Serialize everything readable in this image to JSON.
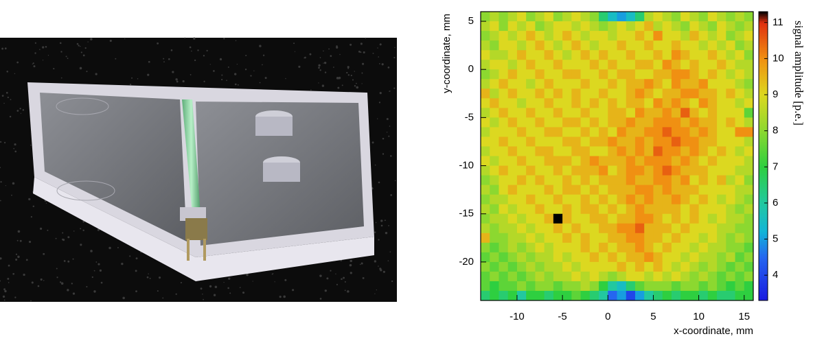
{
  "chart_data": {
    "type": "heatmap",
    "x_label": "x-coordinate, mm",
    "y_label": "y-coordinate, mm",
    "colorbar_label": "signal amplitude [p.e.]",
    "xlim": [
      -14,
      16
    ],
    "ylim": [
      -24,
      6
    ],
    "xticks": [
      -10,
      -5,
      0,
      5,
      10,
      15
    ],
    "yticks": [
      5,
      0,
      -5,
      -10,
      -15,
      -20
    ],
    "zlim": [
      3.3,
      11.3
    ],
    "zticks": [
      4,
      5,
      6,
      7,
      8,
      9,
      10,
      11
    ],
    "colorscale": [
      [
        3.3,
        "#1a1ae0"
      ],
      [
        4.5,
        "#2566f0"
      ],
      [
        5.2,
        "#12b4d8"
      ],
      [
        6,
        "#22c8a0"
      ],
      [
        7,
        "#2ecf40"
      ],
      [
        8,
        "#8cd830"
      ],
      [
        9,
        "#dcd820"
      ],
      [
        10,
        "#f09012"
      ],
      [
        11,
        "#e03010"
      ],
      [
        11.3,
        "#000000"
      ]
    ],
    "x": [
      -13.5,
      -12.5,
      -11.5,
      -10.5,
      -9.5,
      -8.5,
      -7.5,
      -6.5,
      -5.5,
      -4.5,
      -3.5,
      -2.5,
      -1.5,
      -0.5,
      0.5,
      1.5,
      2.5,
      3.5,
      4.5,
      5.5,
      6.5,
      7.5,
      8.5,
      9.5,
      10.5,
      11.5,
      12.5,
      13.5,
      14.5,
      15.5
    ],
    "y": [
      5.5,
      4.5,
      3.5,
      2.5,
      1.5,
      0.5,
      -0.5,
      -1.5,
      -2.5,
      -3.5,
      -4.5,
      -5.5,
      -6.5,
      -7.5,
      -8.5,
      -9.5,
      -10.5,
      -11.5,
      -12.5,
      -13.5,
      -14.5,
      -15.5,
      -16.5,
      -17.5,
      -18.5,
      -19.5,
      -20.5,
      -21.5,
      -22.5,
      -23.5
    ],
    "z": [
      [
        8,
        8.5,
        8,
        8.5,
        9,
        8,
        8.5,
        9,
        8,
        8.5,
        9,
        8.5,
        8,
        6.5,
        5.5,
        5,
        5.5,
        6.5,
        8.5,
        9,
        8.5,
        8,
        9,
        8.5,
        8,
        9,
        8.5,
        8,
        8.5,
        8
      ],
      [
        8.5,
        9,
        8,
        9,
        8.5,
        9,
        8,
        8.5,
        9,
        9,
        8.5,
        9,
        8.5,
        8,
        8.5,
        9,
        8.5,
        9,
        9.5,
        8.5,
        9,
        8.5,
        8,
        9,
        8.5,
        8,
        9,
        8.5,
        8,
        8.5
      ],
      [
        8,
        8.5,
        9,
        8.5,
        9,
        9.5,
        9,
        8.5,
        9,
        9.5,
        9,
        8.5,
        9,
        9,
        8.5,
        9,
        9,
        9.5,
        9,
        10,
        9,
        9,
        8.5,
        9.5,
        9,
        8.5,
        9,
        8,
        8.5,
        9
      ],
      [
        8.5,
        8,
        9,
        9,
        8.5,
        9,
        9.5,
        9,
        8.5,
        9,
        9.5,
        9,
        8.5,
        9,
        9,
        9.5,
        9,
        9,
        9.5,
        9,
        9,
        9.5,
        9,
        9,
        8.5,
        9,
        8.5,
        9,
        8,
        8.5
      ],
      [
        9,
        8.5,
        8.5,
        9,
        9.5,
        9,
        9,
        9.5,
        9,
        8.5,
        9,
        9.5,
        9,
        9.5,
        9,
        9,
        9.5,
        9,
        9,
        9.5,
        9,
        10,
        9.5,
        9,
        9,
        9.5,
        9,
        8.5,
        9,
        8
      ],
      [
        8.5,
        9,
        9,
        8.5,
        9,
        9.5,
        9,
        9,
        9.5,
        9,
        9,
        9,
        9.5,
        9,
        9.5,
        9,
        9,
        9.5,
        9.5,
        9,
        10,
        9.5,
        9,
        9.5,
        9,
        9,
        9.5,
        9,
        8.5,
        8.5
      ],
      [
        8,
        8.5,
        9,
        9.5,
        9,
        9,
        9.5,
        9,
        9,
        9.5,
        9.5,
        9,
        9,
        9.5,
        9,
        9.5,
        9.5,
        9,
        9,
        9.5,
        9.5,
        10,
        10,
        9.5,
        9,
        9.5,
        9,
        8.5,
        9,
        8.5
      ],
      [
        8.5,
        9,
        9.5,
        9,
        9,
        8.5,
        9,
        9.5,
        9,
        9,
        9,
        9.5,
        9,
        9,
        9.5,
        9,
        9.5,
        9.5,
        10,
        9.5,
        9,
        10,
        9.5,
        9.5,
        10,
        9,
        9,
        9,
        8.5,
        8
      ],
      [
        9.5,
        8.5,
        9,
        9.5,
        9,
        9,
        9.5,
        9,
        9.5,
        9,
        9.5,
        9,
        9,
        9.5,
        9,
        9,
        9.5,
        10,
        9.5,
        9,
        9.5,
        9.5,
        10,
        10,
        9.5,
        9.5,
        9,
        9.5,
        9,
        8.5
      ],
      [
        9,
        9.5,
        9,
        9,
        8.5,
        9,
        9,
        9.5,
        9,
        9,
        9.5,
        9,
        9.5,
        9,
        9.5,
        9,
        9.5,
        9.5,
        9,
        10,
        9.5,
        10,
        9.5,
        9,
        10,
        9.5,
        9,
        9,
        8.5,
        9
      ],
      [
        8.5,
        9,
        9.5,
        9,
        9,
        9.5,
        9,
        9,
        9.5,
        9,
        9,
        9.5,
        9,
        9,
        9.5,
        9.5,
        9,
        10,
        9.5,
        9.5,
        10,
        9.5,
        10.5,
        9.5,
        9,
        9.5,
        9,
        9,
        9,
        7.5
      ],
      [
        9,
        8.5,
        9,
        9.5,
        9,
        9,
        9.5,
        9,
        9,
        9.5,
        9.5,
        9,
        9.5,
        9,
        9.5,
        9.5,
        10,
        9.5,
        9.5,
        10,
        10,
        10,
        9.5,
        10,
        9.5,
        9.5,
        9,
        9.5,
        9,
        8.5
      ],
      [
        8.5,
        9,
        9,
        9,
        9.5,
        9,
        9,
        9.5,
        9.5,
        9,
        9,
        9.5,
        9,
        9.5,
        9,
        10,
        9.5,
        9.5,
        10,
        10,
        10.5,
        10,
        10,
        9.5,
        10,
        9.5,
        9,
        9,
        10,
        10
      ],
      [
        9,
        9,
        9.5,
        9,
        9,
        9.5,
        9,
        9,
        9,
        9.5,
        9.5,
        9,
        9.5,
        9.5,
        10,
        9.5,
        9.5,
        10,
        9.5,
        10,
        10,
        10.5,
        10,
        10,
        9.5,
        9.5,
        9,
        9,
        9,
        8.5
      ],
      [
        8.5,
        9,
        9,
        9.5,
        9,
        9,
        9.5,
        9.5,
        9,
        9,
        9.5,
        9.5,
        9,
        9,
        9.5,
        10,
        9.5,
        10,
        9.5,
        10.5,
        10,
        10,
        9.5,
        10,
        9.5,
        9,
        9.5,
        9,
        8.5,
        9
      ],
      [
        9,
        8.5,
        9,
        9,
        9.5,
        9,
        9,
        9.5,
        9.5,
        9.5,
        9,
        9.5,
        10,
        9.5,
        9.5,
        9.5,
        10,
        9.5,
        10,
        10,
        10,
        9.5,
        10,
        9.5,
        9,
        9.5,
        9,
        9,
        9,
        8.5
      ],
      [
        8.5,
        9,
        9.5,
        9,
        9,
        9.5,
        9,
        9,
        9.5,
        9,
        9.5,
        9.5,
        9.5,
        10,
        9,
        9.5,
        10,
        10,
        9.5,
        10,
        10.5,
        10,
        9.5,
        9.5,
        9.5,
        9,
        9,
        9,
        8.5,
        8.5
      ],
      [
        8,
        8.5,
        9,
        9,
        9.5,
        9,
        9.5,
        9,
        9,
        9.5,
        9,
        9.5,
        9,
        9.5,
        9.5,
        9.5,
        10,
        9.5,
        9.5,
        10,
        10,
        9.5,
        10,
        9,
        9.5,
        9,
        9.5,
        8.5,
        9,
        8
      ],
      [
        8.5,
        8,
        9,
        9.5,
        9,
        9,
        9,
        9.5,
        9,
        9.5,
        9.5,
        9,
        9.5,
        9,
        9.5,
        9.5,
        9.5,
        10,
        10,
        9.5,
        10,
        9.5,
        9.5,
        9.5,
        9,
        9,
        9,
        9,
        8.5,
        8.5
      ],
      [
        8,
        8.5,
        8.5,
        9,
        9,
        9.5,
        9,
        9,
        9.5,
        9,
        9,
        9.5,
        9,
        9.5,
        9,
        9.5,
        10,
        9.5,
        10,
        9.5,
        9.5,
        10,
        9.5,
        9,
        9.5,
        9,
        8.5,
        9,
        8.5,
        8
      ],
      [
        8.5,
        8,
        9,
        8.5,
        9,
        9,
        9.5,
        9,
        9,
        9.5,
        9,
        9.5,
        9.5,
        9,
        9.5,
        9,
        9.5,
        10,
        9.5,
        9.5,
        9.5,
        9.5,
        9,
        9.5,
        9,
        9,
        9,
        8.5,
        8,
        8.5
      ],
      [
        8,
        8.5,
        8.5,
        9,
        8.5,
        9,
        9,
        9.5,
        11.3,
        9.5,
        9,
        9,
        9.5,
        9.5,
        9,
        9.5,
        9.5,
        10,
        10,
        9.5,
        9,
        9.5,
        9,
        9.5,
        9,
        8.5,
        9,
        8.5,
        8.5,
        8
      ],
      [
        8.5,
        8,
        8.5,
        8.5,
        9,
        8.5,
        9,
        9,
        9.5,
        9,
        9.5,
        9,
        9,
        9.5,
        9.5,
        10,
        10,
        10.5,
        9.5,
        9.5,
        9.5,
        9,
        9.5,
        9,
        9,
        9,
        8.5,
        8.5,
        8,
        8
      ],
      [
        9.5,
        8,
        8,
        8.5,
        8.5,
        9,
        8.5,
        9,
        9,
        9.5,
        9,
        9.5,
        9,
        9,
        9.5,
        9.5,
        10,
        10,
        9.5,
        9.5,
        9,
        9.5,
        9,
        9,
        8.5,
        9,
        8.5,
        8,
        8.5,
        8
      ],
      [
        8,
        7.5,
        8,
        8.5,
        8,
        8.5,
        9,
        8.5,
        9,
        9,
        9,
        9.5,
        9,
        9.5,
        9,
        9.5,
        9.5,
        10,
        9.5,
        9,
        9.5,
        9,
        9,
        8.5,
        9,
        8.5,
        8.5,
        8,
        8,
        7.5
      ],
      [
        7.5,
        8,
        7.5,
        8,
        8.5,
        8,
        8.5,
        8.5,
        9,
        8.5,
        9,
        9,
        9.5,
        9,
        9.5,
        9,
        9.5,
        9.5,
        10,
        9.5,
        9,
        9,
        8.5,
        9,
        8.5,
        8.5,
        8,
        8.5,
        7.5,
        8
      ],
      [
        8,
        7.5,
        8,
        7.5,
        8,
        8.5,
        8,
        8.5,
        8.5,
        9,
        8.5,
        9,
        9,
        9,
        9,
        9.5,
        9,
        9.5,
        9,
        9.5,
        9,
        8.5,
        9,
        8.5,
        8,
        8.5,
        8,
        7.5,
        8,
        7.5
      ],
      [
        7.5,
        8,
        7.5,
        8,
        7.5,
        8,
        8.5,
        8,
        8.5,
        8.5,
        9,
        8.5,
        9,
        8.5,
        8,
        8.5,
        9,
        9,
        8.5,
        9,
        8.5,
        9,
        8.5,
        8,
        8.5,
        8,
        7.5,
        8,
        7.5,
        8
      ],
      [
        7.5,
        7,
        7.5,
        7.5,
        8,
        7.5,
        8,
        8,
        7.5,
        8,
        8,
        8.5,
        8,
        7,
        6,
        5.5,
        6.5,
        7.5,
        8,
        8,
        8,
        7.5,
        8,
        8,
        7.5,
        8,
        7.5,
        7,
        7.5,
        7
      ],
      [
        6.5,
        7,
        6.5,
        7,
        6,
        7,
        7,
        6.5,
        7,
        7,
        7.5,
        7,
        6.5,
        6,
        4.5,
        5,
        4,
        5,
        6,
        6.5,
        7,
        6.5,
        7,
        7,
        6.5,
        7,
        6.5,
        6.5,
        7,
        7
      ]
    ]
  }
}
